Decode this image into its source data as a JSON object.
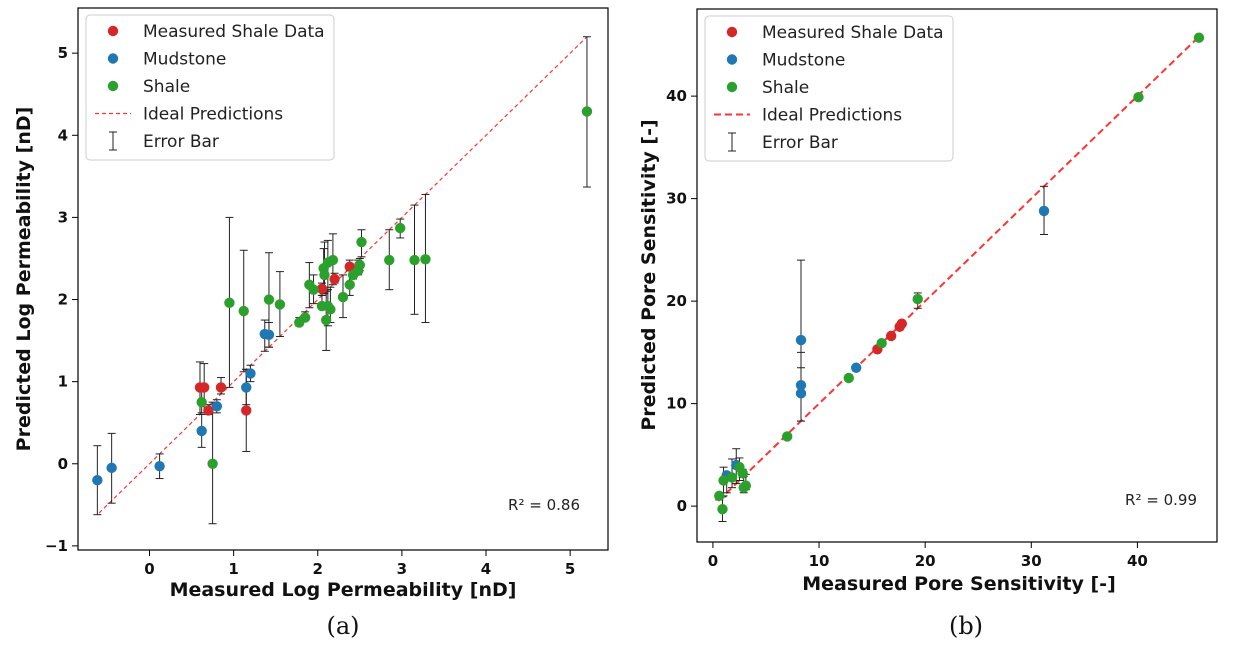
{
  "colors": {
    "measured": "#d62728",
    "mudstone": "#1f77b4",
    "shale": "#2ca02c",
    "ideal": "#ff3333",
    "errorbar": "#222222"
  },
  "chart_data": [
    {
      "type": "scatter",
      "panel_label": "(a)",
      "xlabel": "Measured Log Permeability [nD]",
      "ylabel": "Predicted Log Permeability [nD]",
      "xlim": [
        -0.85,
        5.45
      ],
      "ylim": [
        -1.05,
        5.55
      ],
      "xticks": [
        "0",
        "1",
        "2",
        "3",
        "4",
        "5"
      ],
      "yticks": [
        "−1",
        "0",
        "1",
        "2",
        "3",
        "4",
        "5"
      ],
      "annotation": "R² = 0.86",
      "grid": false,
      "legend_position": "top-left",
      "legend": [
        "Measured Shale Data",
        "Mudstone",
        "Shale",
        "Ideal Predictions",
        "Error Bar"
      ],
      "ideal_line": [
        [
          -0.6,
          -0.6
        ],
        [
          5.2,
          5.2
        ]
      ],
      "series": [
        {
          "name": "Measured Shale Data",
          "color_key": "measured",
          "points": [
            {
              "x": 0.6,
              "y": 0.93,
              "lo": 0.6,
              "hi": 1.24
            },
            {
              "x": 0.65,
              "y": 0.93,
              "lo": 0.62,
              "hi": 1.22
            },
            {
              "x": 0.7,
              "y": 0.65,
              "lo": 0.6,
              "hi": 0.72
            },
            {
              "x": 0.85,
              "y": 0.93,
              "lo": 0.85,
              "hi": 1.05
            },
            {
              "x": 1.15,
              "y": 0.65,
              "lo": 0.15,
              "hi": 1.15
            },
            {
              "x": 2.05,
              "y": 2.13,
              "lo": 2.05,
              "hi": 2.2
            },
            {
              "x": 2.2,
              "y": 2.25,
              "lo": 2.2,
              "hi": 2.32
            },
            {
              "x": 2.38,
              "y": 2.4,
              "lo": 2.35,
              "hi": 2.48
            }
          ]
        },
        {
          "name": "Mudstone",
          "color_key": "mudstone",
          "points": [
            {
              "x": -0.62,
              "y": -0.2,
              "lo": -0.62,
              "hi": 0.22
            },
            {
              "x": -0.45,
              "y": -0.05,
              "lo": -0.48,
              "hi": 0.37
            },
            {
              "x": 0.12,
              "y": -0.03,
              "lo": -0.18,
              "hi": 0.12
            },
            {
              "x": 0.62,
              "y": 0.4,
              "lo": 0.2,
              "hi": 0.6
            },
            {
              "x": 0.8,
              "y": 0.7,
              "lo": 0.62,
              "hi": 0.78
            },
            {
              "x": 1.15,
              "y": 0.93,
              "lo": 0.72,
              "hi": 1.15
            },
            {
              "x": 1.2,
              "y": 1.1,
              "lo": 1.0,
              "hi": 1.2
            },
            {
              "x": 1.37,
              "y": 1.58,
              "lo": 1.37,
              "hi": 1.75
            },
            {
              "x": 1.42,
              "y": 1.57,
              "lo": 1.42,
              "hi": 1.72
            }
          ]
        },
        {
          "name": "Shale",
          "color_key": "shale",
          "points": [
            {
              "x": 0.62,
              "y": 0.75,
              "lo": 0.62,
              "hi": 0.9
            },
            {
              "x": 0.75,
              "y": 0.0,
              "lo": -0.73,
              "hi": 0.75
            },
            {
              "x": 0.95,
              "y": 1.96,
              "lo": 0.93,
              "hi": 3.0
            },
            {
              "x": 1.12,
              "y": 1.86,
              "lo": 1.12,
              "hi": 2.6
            },
            {
              "x": 1.42,
              "y": 2.0,
              "lo": 1.42,
              "hi": 2.57
            },
            {
              "x": 1.55,
              "y": 1.94,
              "lo": 1.55,
              "hi": 2.34
            },
            {
              "x": 1.78,
              "y": 1.72,
              "lo": 1.68,
              "hi": 1.78
            },
            {
              "x": 1.85,
              "y": 1.78,
              "lo": 1.75,
              "hi": 1.85
            },
            {
              "x": 1.9,
              "y": 2.18,
              "lo": 1.9,
              "hi": 2.45
            },
            {
              "x": 1.95,
              "y": 2.12,
              "lo": 1.95,
              "hi": 2.3
            },
            {
              "x": 2.05,
              "y": 1.92,
              "lo": 1.92,
              "hi": 2.05
            },
            {
              "x": 2.07,
              "y": 2.38,
              "lo": 2.07,
              "hi": 2.62
            },
            {
              "x": 2.08,
              "y": 2.3,
              "lo": 2.08,
              "hi": 2.7
            },
            {
              "x": 2.1,
              "y": 1.75,
              "lo": 1.38,
              "hi": 2.1
            },
            {
              "x": 2.12,
              "y": 2.45,
              "lo": 2.12,
              "hi": 2.72
            },
            {
              "x": 2.12,
              "y": 1.92,
              "lo": 1.68,
              "hi": 2.12
            },
            {
              "x": 2.15,
              "y": 1.88,
              "lo": 1.72,
              "hi": 2.15
            },
            {
              "x": 2.18,
              "y": 2.48,
              "lo": 2.18,
              "hi": 2.8
            },
            {
              "x": 2.3,
              "y": 2.03,
              "lo": 1.78,
              "hi": 2.3
            },
            {
              "x": 2.38,
              "y": 2.18,
              "lo": 2.05,
              "hi": 2.38
            },
            {
              "x": 2.42,
              "y": 2.3,
              "lo": 2.25,
              "hi": 2.42
            },
            {
              "x": 2.48,
              "y": 2.35,
              "lo": 2.3,
              "hi": 2.48
            },
            {
              "x": 2.5,
              "y": 2.42,
              "lo": 2.35,
              "hi": 2.5
            },
            {
              "x": 2.52,
              "y": 2.7,
              "lo": 2.52,
              "hi": 2.85
            },
            {
              "x": 2.85,
              "y": 2.48,
              "lo": 2.12,
              "hi": 2.85
            },
            {
              "x": 2.98,
              "y": 2.87,
              "lo": 2.75,
              "hi": 2.98
            },
            {
              "x": 3.15,
              "y": 2.48,
              "lo": 1.82,
              "hi": 3.15
            },
            {
              "x": 3.28,
              "y": 2.49,
              "lo": 1.72,
              "hi": 3.28
            },
            {
              "x": 5.2,
              "y": 4.29,
              "lo": 3.37,
              "hi": 5.2
            }
          ]
        }
      ]
    },
    {
      "type": "scatter",
      "panel_label": "(b)",
      "xlabel": "Measured Pore Sensitivity [-]",
      "ylabel": "Predicted Pore Sensitivity [-]",
      "xlim": [
        -1.5,
        47.5
      ],
      "ylim": [
        -3.5,
        48.5
      ],
      "xticks": [
        "0",
        "10",
        "20",
        "30",
        "40"
      ],
      "yticks": [
        "0",
        "10",
        "20",
        "30",
        "40"
      ],
      "annotation": "R² = 0.99",
      "grid": false,
      "legend_position": "top-left",
      "legend": [
        "Measured Shale Data",
        "Mudstone",
        "Shale",
        "Ideal Predictions",
        "Error Bar"
      ],
      "ideal_line": [
        [
          0.5,
          0.5
        ],
        [
          45.8,
          45.8
        ]
      ],
      "series": [
        {
          "name": "Measured Shale Data",
          "color_key": "measured",
          "points": [
            {
              "x": 15.5,
              "y": 15.3,
              "lo": 15.1,
              "hi": 15.5
            },
            {
              "x": 16.8,
              "y": 16.6,
              "lo": 16.4,
              "hi": 16.8
            },
            {
              "x": 17.6,
              "y": 17.5,
              "lo": 17.2,
              "hi": 17.7
            },
            {
              "x": 17.8,
              "y": 17.8,
              "lo": 17.6,
              "hi": 18.0
            }
          ]
        },
        {
          "name": "Mudstone",
          "color_key": "mudstone",
          "points": [
            {
              "x": 1.3,
              "y": 3.0,
              "lo": 1.3,
              "hi": 3.3
            },
            {
              "x": 2.2,
              "y": 4.0,
              "lo": 2.2,
              "hi": 5.6
            },
            {
              "x": 8.3,
              "y": 16.2,
              "lo": 8.3,
              "hi": 24.0
            },
            {
              "x": 8.3,
              "y": 11.8,
              "lo": 8.3,
              "hi": 15.0
            },
            {
              "x": 8.3,
              "y": 11.0,
              "lo": 8.3,
              "hi": 13.5
            },
            {
              "x": 13.5,
              "y": 13.5,
              "lo": 13.2,
              "hi": 13.7
            },
            {
              "x": 31.2,
              "y": 28.8,
              "lo": 26.5,
              "hi": 31.2
            }
          ]
        },
        {
          "name": "Shale",
          "color_key": "shale",
          "points": [
            {
              "x": 0.6,
              "y": 1.0,
              "lo": 0.6,
              "hi": 1.2
            },
            {
              "x": 0.9,
              "y": -0.3,
              "lo": -1.5,
              "hi": 0.9
            },
            {
              "x": 1.0,
              "y": 2.5,
              "lo": 1.0,
              "hi": 3.8
            },
            {
              "x": 1.8,
              "y": 2.8,
              "lo": 1.8,
              "hi": 4.6
            },
            {
              "x": 2.5,
              "y": 3.8,
              "lo": 2.5,
              "hi": 4.7
            },
            {
              "x": 2.8,
              "y": 3.2,
              "lo": 2.8,
              "hi": 3.6
            },
            {
              "x": 2.9,
              "y": 1.8,
              "lo": 1.3,
              "hi": 2.9
            },
            {
              "x": 3.1,
              "y": 2.0,
              "lo": 1.6,
              "hi": 3.1
            },
            {
              "x": 7.0,
              "y": 6.8,
              "lo": 6.6,
              "hi": 7.0
            },
            {
              "x": 12.8,
              "y": 12.5,
              "lo": 12.3,
              "hi": 12.8
            },
            {
              "x": 15.9,
              "y": 15.9,
              "lo": 15.7,
              "hi": 16.1
            },
            {
              "x": 19.3,
              "y": 20.2,
              "lo": 19.3,
              "hi": 20.8
            },
            {
              "x": 40.1,
              "y": 39.9,
              "lo": 39.7,
              "hi": 40.1
            },
            {
              "x": 45.8,
              "y": 45.7,
              "lo": 45.5,
              "hi": 45.8
            }
          ]
        }
      ]
    }
  ]
}
